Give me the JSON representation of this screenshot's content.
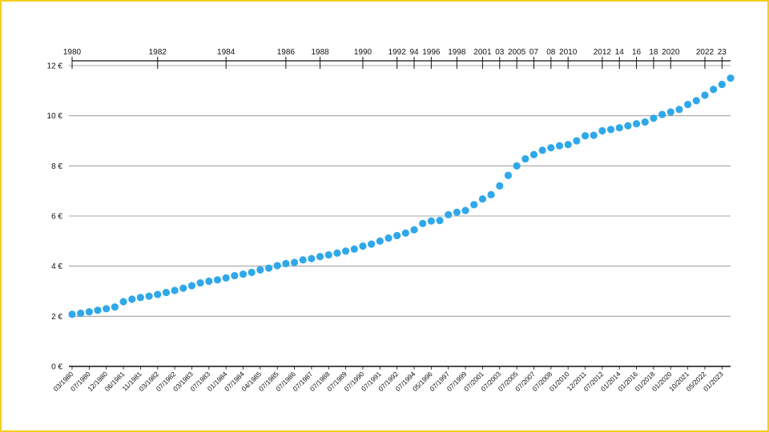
{
  "chart_data": {
    "type": "scatter",
    "title": "",
    "xlabel": "",
    "ylabel": "",
    "grid": true,
    "colors": {
      "points": "#2fa8ea",
      "frame": "#f2cf1f",
      "grid": "#8a8a8a",
      "axis": "#111111"
    },
    "ylim": [
      0,
      12
    ],
    "ytick_values": [
      0,
      2,
      4,
      6,
      8,
      10,
      12
    ],
    "ytick_labels": [
      "0 €",
      "2 €",
      "4 €",
      "6 €",
      "8 €",
      "10 €",
      "12 €"
    ],
    "year_ticks": [
      {
        "label": "1980",
        "index": 0
      },
      {
        "label": "1982",
        "index": 10
      },
      {
        "label": "1984",
        "index": 18
      },
      {
        "label": "1986",
        "index": 25
      },
      {
        "label": "1988",
        "index": 29
      },
      {
        "label": "1990",
        "index": 34
      },
      {
        "label": "1992",
        "index": 38
      },
      {
        "label": "94",
        "index": 40
      },
      {
        "label": "1996",
        "index": 42
      },
      {
        "label": "1998",
        "index": 45
      },
      {
        "label": "2001",
        "index": 48
      },
      {
        "label": "03",
        "index": 50
      },
      {
        "label": "2005",
        "index": 52
      },
      {
        "label": "07",
        "index": 54
      },
      {
        "label": "08",
        "index": 56
      },
      {
        "label": "2010",
        "index": 58
      },
      {
        "label": "2012",
        "index": 62
      },
      {
        "label": "14",
        "index": 64
      },
      {
        "label": "16",
        "index": 66
      },
      {
        "label": "18",
        "index": 68
      },
      {
        "label": "2020",
        "index": 70
      },
      {
        "label": "2022",
        "index": 74
      },
      {
        "label": "23",
        "index": 76
      }
    ],
    "x_labels": [
      {
        "label": "03/1980",
        "index": 0
      },
      {
        "label": "07/1980",
        "index": 2
      },
      {
        "label": "12/1980",
        "index": 4
      },
      {
        "label": "06/1981",
        "index": 6
      },
      {
        "label": "11/1981",
        "index": 8
      },
      {
        "label": "03/1982",
        "index": 10
      },
      {
        "label": "07/1982",
        "index": 12
      },
      {
        "label": "03/1983",
        "index": 14
      },
      {
        "label": "07/1983",
        "index": 16
      },
      {
        "label": "01/1984",
        "index": 18
      },
      {
        "label": "07/1984",
        "index": 20
      },
      {
        "label": "04/1985",
        "index": 22
      },
      {
        "label": "07/1985",
        "index": 24
      },
      {
        "label": "07/1986",
        "index": 26
      },
      {
        "label": "07/1987",
        "index": 28
      },
      {
        "label": "07/1988",
        "index": 30
      },
      {
        "label": "07/1989",
        "index": 32
      },
      {
        "label": "07/1990",
        "index": 34
      },
      {
        "label": "07/1991",
        "index": 36
      },
      {
        "label": "07/1992",
        "index": 38
      },
      {
        "label": "07/1994",
        "index": 40
      },
      {
        "label": "05/1996",
        "index": 42
      },
      {
        "label": "07/1997",
        "index": 44
      },
      {
        "label": "07/1999",
        "index": 46
      },
      {
        "label": "07/2001",
        "index": 48
      },
      {
        "label": "07/2003",
        "index": 50
      },
      {
        "label": "07/2005",
        "index": 52
      },
      {
        "label": "07/2007",
        "index": 54
      },
      {
        "label": "07/2008",
        "index": 56
      },
      {
        "label": "01/2010",
        "index": 58
      },
      {
        "label": "12/2011",
        "index": 60
      },
      {
        "label": "07/2012",
        "index": 62
      },
      {
        "label": "01/2014",
        "index": 64
      },
      {
        "label": "01/2016",
        "index": 66
      },
      {
        "label": "01/2018",
        "index": 68
      },
      {
        "label": "01/2020",
        "index": 70
      },
      {
        "label": "10/2021",
        "index": 72
      },
      {
        "label": "05/2022",
        "index": 74
      },
      {
        "label": "01/2023",
        "index": 76
      }
    ],
    "values": [
      2.08,
      2.12,
      2.18,
      2.24,
      2.3,
      2.37,
      2.58,
      2.68,
      2.75,
      2.8,
      2.87,
      2.95,
      3.03,
      3.12,
      3.22,
      3.33,
      3.4,
      3.45,
      3.53,
      3.62,
      3.68,
      3.75,
      3.85,
      3.92,
      4.02,
      4.1,
      4.15,
      4.25,
      4.3,
      4.38,
      4.45,
      4.52,
      4.6,
      4.68,
      4.8,
      4.88,
      5.0,
      5.12,
      5.22,
      5.32,
      5.45,
      5.7,
      5.8,
      5.82,
      6.05,
      6.15,
      6.22,
      6.45,
      6.68,
      6.85,
      7.2,
      7.62,
      8.0,
      8.28,
      8.45,
      8.62,
      8.72,
      8.8,
      8.85,
      9.0,
      9.2,
      9.22,
      9.4,
      9.45,
      9.52,
      9.6,
      9.68,
      9.75,
      9.9,
      10.05,
      10.15,
      10.25,
      10.45,
      10.6,
      10.82,
      11.05,
      11.25,
      11.5
    ]
  }
}
